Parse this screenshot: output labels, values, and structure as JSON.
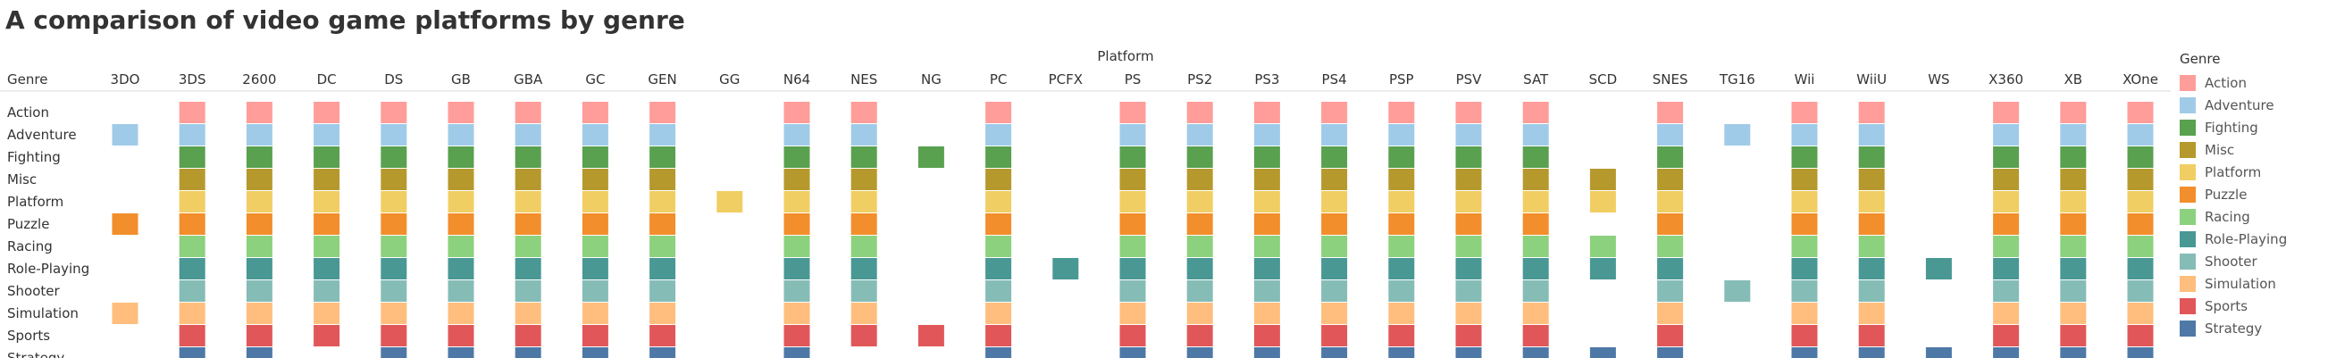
{
  "title": "A comparison of video game platforms by genre",
  "chart_data": {
    "type": "heatmap",
    "title": "A comparison of video game platforms by genre",
    "column_header": "Platform",
    "row_header": "Genre",
    "platforms": [
      "3DO",
      "3DS",
      "2600",
      "DC",
      "DS",
      "GB",
      "GBA",
      "GC",
      "GEN",
      "GG",
      "N64",
      "NES",
      "NG",
      "PC",
      "PCFX",
      "PS",
      "PS2",
      "PS3",
      "PS4",
      "PSP",
      "PSV",
      "SAT",
      "SCD",
      "SNES",
      "TG16",
      "Wii",
      "WiiU",
      "WS",
      "X360",
      "XB",
      "XOne"
    ],
    "genres": [
      "Action",
      "Adventure",
      "Fighting",
      "Misc",
      "Platform",
      "Puzzle",
      "Racing",
      "Role-Playing",
      "Shooter",
      "Simulation",
      "Sports",
      "Strategy"
    ],
    "genre_colors": {
      "Action": "#ff9d9a",
      "Adventure": "#a0cbe8",
      "Fighting": "#59a14f",
      "Misc": "#b6992d",
      "Platform": "#f1ce63",
      "Puzzle": "#f28e2b",
      "Racing": "#8cd17d",
      "Role-Playing": "#499894",
      "Shooter": "#86bcb6",
      "Simulation": "#ffbe7d",
      "Sports": "#e15759",
      "Strategy": "#4e79a7"
    },
    "presence": {
      "3DO": [
        "Adventure",
        "Puzzle",
        "Simulation"
      ],
      "3DS": [
        "Action",
        "Adventure",
        "Fighting",
        "Misc",
        "Platform",
        "Puzzle",
        "Racing",
        "Role-Playing",
        "Shooter",
        "Simulation",
        "Sports",
        "Strategy"
      ],
      "2600": [
        "Action",
        "Adventure",
        "Fighting",
        "Misc",
        "Platform",
        "Puzzle",
        "Racing",
        "Role-Playing",
        "Shooter",
        "Simulation",
        "Sports",
        "Strategy"
      ],
      "DC": [
        "Action",
        "Adventure",
        "Fighting",
        "Misc",
        "Platform",
        "Puzzle",
        "Racing",
        "Role-Playing",
        "Shooter",
        "Simulation",
        "Sports"
      ],
      "DS": [
        "Action",
        "Adventure",
        "Fighting",
        "Misc",
        "Platform",
        "Puzzle",
        "Racing",
        "Role-Playing",
        "Shooter",
        "Simulation",
        "Sports",
        "Strategy"
      ],
      "GB": [
        "Action",
        "Adventure",
        "Fighting",
        "Misc",
        "Platform",
        "Puzzle",
        "Racing",
        "Role-Playing",
        "Shooter",
        "Simulation",
        "Sports",
        "Strategy"
      ],
      "GBA": [
        "Action",
        "Adventure",
        "Fighting",
        "Misc",
        "Platform",
        "Puzzle",
        "Racing",
        "Role-Playing",
        "Shooter",
        "Simulation",
        "Sports",
        "Strategy"
      ],
      "GC": [
        "Action",
        "Adventure",
        "Fighting",
        "Misc",
        "Platform",
        "Puzzle",
        "Racing",
        "Role-Playing",
        "Shooter",
        "Simulation",
        "Sports",
        "Strategy"
      ],
      "GEN": [
        "Action",
        "Adventure",
        "Fighting",
        "Misc",
        "Platform",
        "Puzzle",
        "Racing",
        "Role-Playing",
        "Shooter",
        "Simulation",
        "Sports",
        "Strategy"
      ],
      "GG": [
        "Platform"
      ],
      "N64": [
        "Action",
        "Adventure",
        "Fighting",
        "Misc",
        "Platform",
        "Puzzle",
        "Racing",
        "Role-Playing",
        "Shooter",
        "Simulation",
        "Sports",
        "Strategy"
      ],
      "NES": [
        "Action",
        "Adventure",
        "Fighting",
        "Misc",
        "Platform",
        "Puzzle",
        "Racing",
        "Role-Playing",
        "Shooter",
        "Simulation",
        "Sports"
      ],
      "NG": [
        "Fighting",
        "Sports"
      ],
      "PC": [
        "Action",
        "Adventure",
        "Fighting",
        "Misc",
        "Platform",
        "Puzzle",
        "Racing",
        "Role-Playing",
        "Shooter",
        "Simulation",
        "Sports",
        "Strategy"
      ],
      "PCFX": [
        "Role-Playing"
      ],
      "PS": [
        "Action",
        "Adventure",
        "Fighting",
        "Misc",
        "Platform",
        "Puzzle",
        "Racing",
        "Role-Playing",
        "Shooter",
        "Simulation",
        "Sports",
        "Strategy"
      ],
      "PS2": [
        "Action",
        "Adventure",
        "Fighting",
        "Misc",
        "Platform",
        "Puzzle",
        "Racing",
        "Role-Playing",
        "Shooter",
        "Simulation",
        "Sports",
        "Strategy"
      ],
      "PS3": [
        "Action",
        "Adventure",
        "Fighting",
        "Misc",
        "Platform",
        "Puzzle",
        "Racing",
        "Role-Playing",
        "Shooter",
        "Simulation",
        "Sports",
        "Strategy"
      ],
      "PS4": [
        "Action",
        "Adventure",
        "Fighting",
        "Misc",
        "Platform",
        "Puzzle",
        "Racing",
        "Role-Playing",
        "Shooter",
        "Simulation",
        "Sports",
        "Strategy"
      ],
      "PSP": [
        "Action",
        "Adventure",
        "Fighting",
        "Misc",
        "Platform",
        "Puzzle",
        "Racing",
        "Role-Playing",
        "Shooter",
        "Simulation",
        "Sports",
        "Strategy"
      ],
      "PSV": [
        "Action",
        "Adventure",
        "Fighting",
        "Misc",
        "Platform",
        "Puzzle",
        "Racing",
        "Role-Playing",
        "Shooter",
        "Simulation",
        "Sports",
        "Strategy"
      ],
      "SAT": [
        "Action",
        "Adventure",
        "Fighting",
        "Misc",
        "Platform",
        "Puzzle",
        "Racing",
        "Role-Playing",
        "Shooter",
        "Simulation",
        "Sports",
        "Strategy"
      ],
      "SCD": [
        "Misc",
        "Platform",
        "Racing",
        "Role-Playing",
        "Strategy"
      ],
      "SNES": [
        "Action",
        "Adventure",
        "Fighting",
        "Misc",
        "Platform",
        "Puzzle",
        "Racing",
        "Role-Playing",
        "Shooter",
        "Simulation",
        "Sports",
        "Strategy"
      ],
      "TG16": [
        "Adventure",
        "Shooter"
      ],
      "Wii": [
        "Action",
        "Adventure",
        "Fighting",
        "Misc",
        "Platform",
        "Puzzle",
        "Racing",
        "Role-Playing",
        "Shooter",
        "Simulation",
        "Sports",
        "Strategy"
      ],
      "WiiU": [
        "Action",
        "Adventure",
        "Fighting",
        "Misc",
        "Platform",
        "Puzzle",
        "Racing",
        "Role-Playing",
        "Shooter",
        "Simulation",
        "Sports",
        "Strategy"
      ],
      "WS": [
        "Role-Playing",
        "Strategy"
      ],
      "X360": [
        "Action",
        "Adventure",
        "Fighting",
        "Misc",
        "Platform",
        "Puzzle",
        "Racing",
        "Role-Playing",
        "Shooter",
        "Simulation",
        "Sports",
        "Strategy"
      ],
      "XB": [
        "Action",
        "Adventure",
        "Fighting",
        "Misc",
        "Platform",
        "Puzzle",
        "Racing",
        "Role-Playing",
        "Shooter",
        "Simulation",
        "Sports",
        "Strategy"
      ],
      "XOne": [
        "Action",
        "Adventure",
        "Fighting",
        "Misc",
        "Platform",
        "Puzzle",
        "Racing",
        "Role-Playing",
        "Shooter",
        "Simulation",
        "Sports",
        "Strategy"
      ]
    },
    "legend": {
      "title": "Genre",
      "position": "right"
    }
  }
}
